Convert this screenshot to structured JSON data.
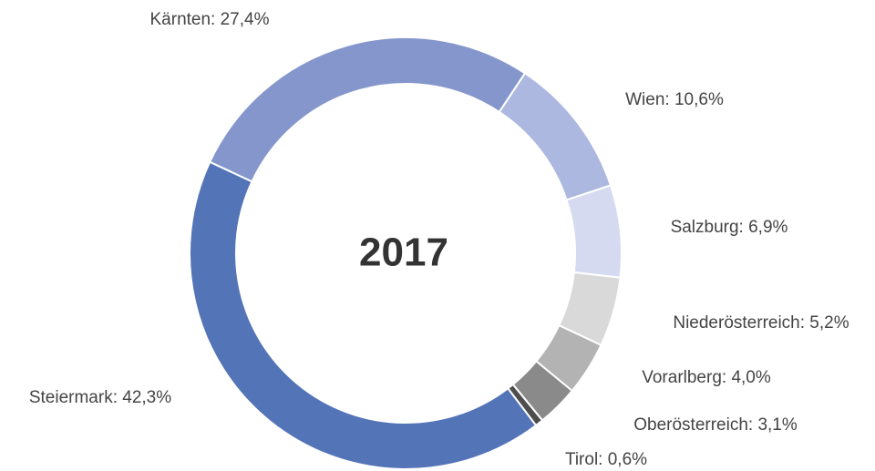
{
  "chart_data": {
    "type": "pie",
    "center_label": "2017",
    "categories": [
      "Kärnten",
      "Wien",
      "Salzburg",
      "Niederösterreich",
      "Vorarlberg",
      "Oberösterreich",
      "Tirol",
      "Steiermark"
    ],
    "values": [
      27.4,
      10.6,
      6.9,
      5.2,
      4.0,
      3.1,
      0.6,
      42.3
    ],
    "value_labels": [
      "Kärnten: 27,4%",
      "Wien: 10,6%",
      "Salzburg: 6,9%",
      "Niederösterreich: 5,2%",
      "Vorarlberg: 4,0%",
      "Oberösterreich: 3,1%",
      "Tirol: 0,6%",
      "Steiermark: 42,3%"
    ],
    "colors": [
      "#8496cc",
      "#adb8e0",
      "#d5daf0",
      "#d9d9d9",
      "#b3b3b3",
      "#8a8a8a",
      "#4d4d4d",
      "#5474b8"
    ]
  }
}
